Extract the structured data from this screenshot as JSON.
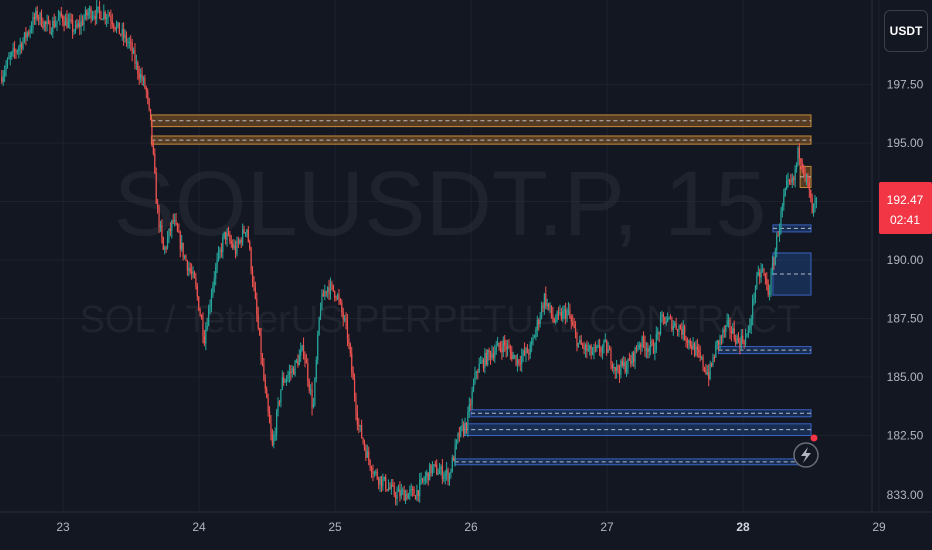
{
  "watermark": {
    "symbol": "SOLUSDT.P, 15",
    "description": "SOL / TetherUS PERPETUAL CONTRACT"
  },
  "currency_button": "USDT",
  "price_tag": {
    "price": "192.47",
    "countdown": "02:41",
    "color": "#f23645"
  },
  "colors": {
    "background": "#131722",
    "up": "#26a69a",
    "down": "#ef5350",
    "supply_zone": "#8a5a20",
    "demand_zone": "#1e3f7a"
  },
  "alert_icon": "lightning-alert-icon",
  "chart_data": {
    "type": "candlestick",
    "y_ticks": [
      "197.50",
      "195.00",
      "192.50",
      "190.00",
      "187.50",
      "185.00",
      "182.50",
      "833.00"
    ],
    "x_ticks": [
      "23",
      "24",
      "25",
      "26",
      "27",
      "28",
      "29"
    ],
    "x_tick_bold": "28",
    "ylim": [
      180.6,
      200.6
    ],
    "xlim": [
      22.55,
      29.3
    ],
    "path": [
      [
        22.55,
        197.8
      ],
      [
        22.62,
        198.6
      ],
      [
        22.72,
        199.4
      ],
      [
        22.82,
        200.5
      ],
      [
        22.9,
        199.9
      ],
      [
        23.0,
        200.4
      ],
      [
        23.1,
        199.8
      ],
      [
        23.2,
        200.6
      ],
      [
        23.35,
        200.5
      ],
      [
        23.42,
        199.8
      ],
      [
        23.5,
        199.2
      ],
      [
        23.55,
        198.3
      ],
      [
        23.62,
        197.3
      ],
      [
        23.66,
        195.5
      ],
      [
        23.7,
        192.3
      ],
      [
        23.75,
        190.3
      ],
      [
        23.82,
        191.7
      ],
      [
        23.9,
        190.2
      ],
      [
        23.98,
        189.0
      ],
      [
        24.05,
        186.7
      ],
      [
        24.12,
        189.3
      ],
      [
        24.2,
        191.1
      ],
      [
        24.28,
        190.4
      ],
      [
        24.36,
        191.5
      ],
      [
        24.42,
        188.4
      ],
      [
        24.5,
        184.2
      ],
      [
        24.55,
        182.0
      ],
      [
        24.62,
        184.8
      ],
      [
        24.7,
        185.3
      ],
      [
        24.78,
        186.2
      ],
      [
        24.85,
        183.6
      ],
      [
        24.9,
        188.0
      ],
      [
        24.95,
        188.9
      ],
      [
        25.02,
        188.6
      ],
      [
        25.1,
        186.9
      ],
      [
        25.18,
        183.0
      ],
      [
        25.25,
        181.6
      ],
      [
        25.3,
        180.9
      ],
      [
        25.45,
        180.0
      ],
      [
        25.6,
        180.0
      ],
      [
        25.72,
        181.1
      ],
      [
        25.85,
        180.8
      ],
      [
        25.92,
        182.5
      ],
      [
        25.98,
        183.0
      ],
      [
        26.05,
        185.3
      ],
      [
        26.15,
        186.0
      ],
      [
        26.25,
        186.4
      ],
      [
        26.35,
        185.7
      ],
      [
        26.45,
        186.2
      ],
      [
        26.55,
        188.4
      ],
      [
        26.62,
        187.4
      ],
      [
        26.72,
        187.8
      ],
      [
        26.8,
        186.4
      ],
      [
        26.9,
        186.0
      ],
      [
        27.0,
        186.3
      ],
      [
        27.08,
        185.3
      ],
      [
        27.18,
        185.6
      ],
      [
        27.25,
        186.5
      ],
      [
        27.35,
        186.2
      ],
      [
        27.42,
        187.5
      ],
      [
        27.55,
        187.1
      ],
      [
        27.65,
        186.2
      ],
      [
        27.72,
        185.5
      ],
      [
        27.76,
        185.1
      ],
      [
        27.82,
        186.4
      ],
      [
        27.9,
        187.2
      ],
      [
        27.98,
        186.5
      ],
      [
        28.05,
        186.8
      ],
      [
        28.1,
        188.9
      ],
      [
        28.15,
        189.6
      ],
      [
        28.2,
        188.6
      ],
      [
        28.27,
        191.3
      ],
      [
        28.33,
        193.1
      ],
      [
        28.38,
        193.3
      ],
      [
        28.42,
        194.7
      ],
      [
        28.46,
        193.9
      ],
      [
        28.5,
        192.8
      ],
      [
        28.52,
        192.0
      ],
      [
        28.55,
        192.47
      ]
    ],
    "supply_zones": [
      {
        "x_start": 23.65,
        "x_end": 28.5,
        "low": 195.7,
        "high": 196.2
      },
      {
        "x_start": 23.65,
        "x_end": 28.5,
        "low": 194.95,
        "high": 195.3
      },
      {
        "x_start": 28.42,
        "x_end": 28.5,
        "low": 193.1,
        "high": 194.0
      }
    ],
    "demand_zones": [
      {
        "x_start": 28.22,
        "x_end": 28.5,
        "low": 191.2,
        "high": 191.5
      },
      {
        "x_start": 28.22,
        "x_end": 28.5,
        "low": 188.5,
        "high": 190.3
      },
      {
        "x_start": 27.82,
        "x_end": 28.5,
        "low": 186.0,
        "high": 186.3
      },
      {
        "x_start": 26.0,
        "x_end": 28.5,
        "low": 183.3,
        "high": 183.6
      },
      {
        "x_start": 25.95,
        "x_end": 28.5,
        "low": 182.5,
        "high": 183.0
      },
      {
        "x_start": 25.88,
        "x_end": 28.5,
        "low": 181.25,
        "high": 181.5
      }
    ]
  }
}
